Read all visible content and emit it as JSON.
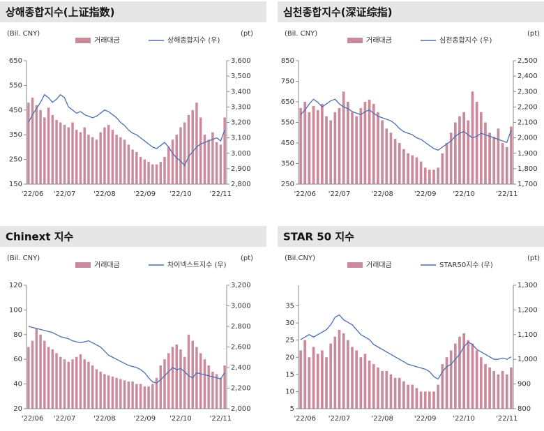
{
  "chart_data": [
    {
      "type": "bar-line",
      "title": "상해종합지수(上证指数)",
      "y_label": "(Bil. CNY)",
      "y2_label": "(pt)",
      "categories": [
        null,
        "'22/06",
        null,
        null,
        null,
        null,
        null,
        null,
        null,
        "'22/07",
        null,
        null,
        null,
        null,
        null,
        null,
        null,
        null,
        null,
        "'22/08",
        null,
        null,
        null,
        null,
        null,
        null,
        null,
        null,
        null,
        "'22/09",
        null,
        null,
        null,
        null,
        null,
        null,
        null,
        null,
        "'22/10",
        null,
        null,
        null,
        null,
        null,
        null,
        null,
        null,
        null,
        "'22/11",
        null
      ],
      "series": [
        {
          "name": "거래대금",
          "type": "bar",
          "color": "#c98a9c",
          "values": [
            480,
            500,
            470,
            450,
            420,
            460,
            430,
            410,
            400,
            390,
            380,
            400,
            370,
            360,
            380,
            350,
            340,
            330,
            360,
            380,
            390,
            370,
            350,
            340,
            330,
            310,
            290,
            280,
            260,
            250,
            240,
            230,
            230,
            240,
            260,
            300,
            330,
            350,
            380,
            400,
            430,
            450,
            480,
            420,
            350,
            330,
            360,
            320,
            310,
            420
          ]
        },
        {
          "name": "상해종합지수 (우)",
          "type": "line",
          "axis": "y2",
          "color": "#4a6fb0",
          "values": [
            3200,
            3250,
            3290,
            3330,
            3380,
            3360,
            3330,
            3350,
            3380,
            3360,
            3300,
            3280,
            3260,
            3270,
            3250,
            3240,
            3230,
            3240,
            3260,
            3280,
            3270,
            3250,
            3230,
            3200,
            3180,
            3150,
            3130,
            3120,
            3100,
            3080,
            3060,
            3040,
            3030,
            3050,
            3070,
            3040,
            3000,
            2970,
            2950,
            2920,
            2980,
            3010,
            3040,
            3060,
            3070,
            3080,
            3090,
            3100,
            3080,
            3150
          ]
        }
      ],
      "ylim": [
        150,
        650
      ],
      "yticks": [
        150,
        250,
        350,
        450,
        550,
        650
      ],
      "y2lim": [
        2800,
        3600
      ],
      "y2ticks": [
        {
          "value": 2800,
          "label": "2,800"
        },
        {
          "value": 2900,
          "label": "2,900"
        },
        {
          "value": 3000,
          "label": "3,000"
        },
        {
          "value": 3100,
          "label": "3,100"
        },
        {
          "value": 3200,
          "label": "3,200"
        },
        {
          "value": 3300,
          "label": "3,300"
        },
        {
          "value": 3400,
          "label": "3,400"
        },
        {
          "value": 3500,
          "label": "3,500"
        },
        {
          "value": 3600,
          "label": "3,600"
        }
      ]
    },
    {
      "type": "bar-line",
      "title": "심천종합지수(深证综指)",
      "y_label": "(Bil. CNY)",
      "y2_label": "(pt)",
      "categories": [
        null,
        "'22/06",
        null,
        null,
        null,
        null,
        null,
        null,
        null,
        "'22/07",
        null,
        null,
        null,
        null,
        null,
        null,
        null,
        null,
        null,
        "'22/08",
        null,
        null,
        null,
        null,
        null,
        null,
        null,
        null,
        null,
        "'22/09",
        null,
        null,
        null,
        null,
        null,
        null,
        null,
        null,
        "'22/10",
        null,
        null,
        null,
        null,
        null,
        null,
        null,
        null,
        null,
        "'22/11",
        null
      ],
      "series": [
        {
          "name": "거래대금",
          "type": "bar",
          "color": "#c98a9c",
          "values": [
            620,
            650,
            600,
            630,
            610,
            640,
            580,
            560,
            600,
            620,
            700,
            650,
            600,
            580,
            620,
            650,
            660,
            640,
            600,
            560,
            520,
            500,
            470,
            450,
            420,
            400,
            390,
            380,
            360,
            330,
            320,
            320,
            330,
            400,
            450,
            500,
            550,
            580,
            600,
            560,
            700,
            650,
            600,
            550,
            500,
            480,
            520,
            450,
            430,
            530
          ]
        },
        {
          "name": "심천종합지수 (우)",
          "type": "line",
          "axis": "y2",
          "color": "#4a6fb0",
          "values": [
            2150,
            2180,
            2220,
            2250,
            2230,
            2200,
            2220,
            2240,
            2250,
            2220,
            2200,
            2190,
            2170,
            2160,
            2150,
            2170,
            2180,
            2160,
            2140,
            2130,
            2120,
            2110,
            2090,
            2060,
            2040,
            2030,
            2020,
            2000,
            1990,
            1970,
            1950,
            1930,
            1920,
            1940,
            1960,
            1980,
            2010,
            2030,
            2040,
            2020,
            2000,
            2010,
            2030,
            2020,
            2010,
            2000,
            1990,
            1980,
            1970,
            2050
          ]
        }
      ],
      "ylim": [
        250,
        850
      ],
      "yticks": [
        250,
        350,
        450,
        550,
        650,
        750,
        850
      ],
      "y2lim": [
        1700,
        2500
      ],
      "y2ticks": [
        {
          "value": 1700,
          "label": "1,700"
        },
        {
          "value": 1800,
          "label": "1,800"
        },
        {
          "value": 1900,
          "label": "1,900"
        },
        {
          "value": 2000,
          "label": "2,000"
        },
        {
          "value": 2100,
          "label": "2,100"
        },
        {
          "value": 2200,
          "label": "2,200"
        },
        {
          "value": 2300,
          "label": "2,300"
        },
        {
          "value": 2400,
          "label": "2,400"
        },
        {
          "value": 2500,
          "label": "2,500"
        }
      ]
    },
    {
      "type": "bar-line",
      "title": "Chinext 지수",
      "y_label": "(Bil. CNY)",
      "y2_label": "(pt)",
      "categories": [
        null,
        "'22/06",
        null,
        null,
        null,
        null,
        null,
        null,
        null,
        "'22/07",
        null,
        null,
        null,
        null,
        null,
        null,
        null,
        null,
        null,
        "'22/08",
        null,
        null,
        null,
        null,
        null,
        null,
        null,
        null,
        null,
        "'22/09",
        null,
        null,
        null,
        null,
        null,
        null,
        null,
        null,
        "'22/10",
        null,
        null,
        null,
        null,
        null,
        null,
        null,
        null,
        null,
        "'22/11",
        null
      ],
      "series": [
        {
          "name": "거래대금",
          "type": "bar",
          "color": "#c98a9c",
          "values": [
            70,
            75,
            85,
            80,
            75,
            70,
            68,
            65,
            62,
            60,
            58,
            60,
            62,
            64,
            60,
            58,
            55,
            52,
            50,
            48,
            47,
            46,
            45,
            44,
            43,
            42,
            42,
            40,
            40,
            38,
            38,
            40,
            45,
            55,
            60,
            65,
            70,
            72,
            68,
            62,
            80,
            75,
            70,
            65,
            60,
            55,
            50,
            48,
            45,
            55
          ]
        },
        {
          "name": "차이넥스트지수 (우)",
          "type": "line",
          "axis": "y2",
          "color": "#4a6fb0",
          "values": [
            2800,
            2790,
            2780,
            2770,
            2760,
            2750,
            2740,
            2720,
            2700,
            2690,
            2680,
            2660,
            2650,
            2640,
            2650,
            2660,
            2640,
            2620,
            2600,
            2560,
            2520,
            2500,
            2480,
            2460,
            2440,
            2420,
            2410,
            2400,
            2380,
            2350,
            2300,
            2260,
            2250,
            2280,
            2320,
            2360,
            2400,
            2380,
            2390,
            2360,
            2320,
            2300,
            2350,
            2340,
            2330,
            2320,
            2310,
            2300,
            2290,
            2350
          ]
        }
      ],
      "ylim": [
        20,
        120
      ],
      "yticks": [
        20,
        40,
        60,
        80,
        100,
        120
      ],
      "y2lim": [
        2000,
        3200
      ],
      "y2ticks": [
        {
          "value": 2000,
          "label": "2,000"
        },
        {
          "value": 2200,
          "label": "2,200"
        },
        {
          "value": 2400,
          "label": "2,400"
        },
        {
          "value": 2600,
          "label": "2,600"
        },
        {
          "value": 2800,
          "label": "2,800"
        },
        {
          "value": 3000,
          "label": "3,000"
        },
        {
          "value": 3200,
          "label": "3,200"
        }
      ]
    },
    {
      "type": "bar-line",
      "title": "STAR 50 지수",
      "y_label": "(Bil.CNY)",
      "y2_label": "(pt)",
      "categories": [
        null,
        "'22/06",
        null,
        null,
        null,
        null,
        null,
        null,
        null,
        "'22/07",
        null,
        null,
        null,
        null,
        null,
        null,
        null,
        null,
        null,
        "'22/08",
        null,
        null,
        null,
        null,
        null,
        null,
        null,
        null,
        null,
        "'22/09",
        null,
        null,
        null,
        null,
        null,
        null,
        null,
        null,
        "'22/10",
        null,
        null,
        null,
        null,
        null,
        null,
        null,
        null,
        null,
        "'22/11",
        null
      ],
      "series": [
        {
          "name": "거래대금",
          "type": "bar",
          "color": "#c98a9c",
          "values": [
            22,
            25,
            20,
            23,
            21,
            22,
            20,
            24,
            26,
            28,
            27,
            25,
            23,
            22,
            20,
            21,
            19,
            18,
            17,
            16,
            16,
            15,
            14,
            14,
            13,
            12,
            12,
            11,
            10,
            10,
            10,
            10,
            12,
            18,
            20,
            22,
            24,
            26,
            27,
            25,
            24,
            22,
            20,
            18,
            17,
            16,
            15,
            16,
            15,
            17
          ]
        },
        {
          "name": "STAR50지수 (우)",
          "type": "line",
          "axis": "y2",
          "color": "#4a6fb0",
          "values": [
            1080,
            1090,
            1100,
            1090,
            1100,
            1110,
            1120,
            1140,
            1170,
            1180,
            1160,
            1150,
            1140,
            1120,
            1100,
            1090,
            1080,
            1060,
            1050,
            1040,
            1030,
            1020,
            1010,
            1000,
            990,
            980,
            975,
            970,
            965,
            960,
            950,
            930,
            920,
            950,
            970,
            980,
            1000,
            1020,
            1050,
            1070,
            1060,
            1040,
            1030,
            1020,
            1010,
            1000,
            1000,
            1005,
            1000,
            1010
          ]
        }
      ],
      "ylim": [
        5,
        41
      ],
      "yticks": [
        5,
        10,
        15,
        20,
        25,
        30,
        35
      ],
      "y2lim": [
        800,
        1300
      ],
      "y2ticks": [
        800,
        900,
        {
          "value": 1000,
          "label": "1,000"
        },
        {
          "value": 1100,
          "label": "1,100"
        },
        {
          "value": 1200,
          "label": "1,200"
        },
        {
          "value": 1300,
          "label": "1,300"
        }
      ]
    }
  ]
}
